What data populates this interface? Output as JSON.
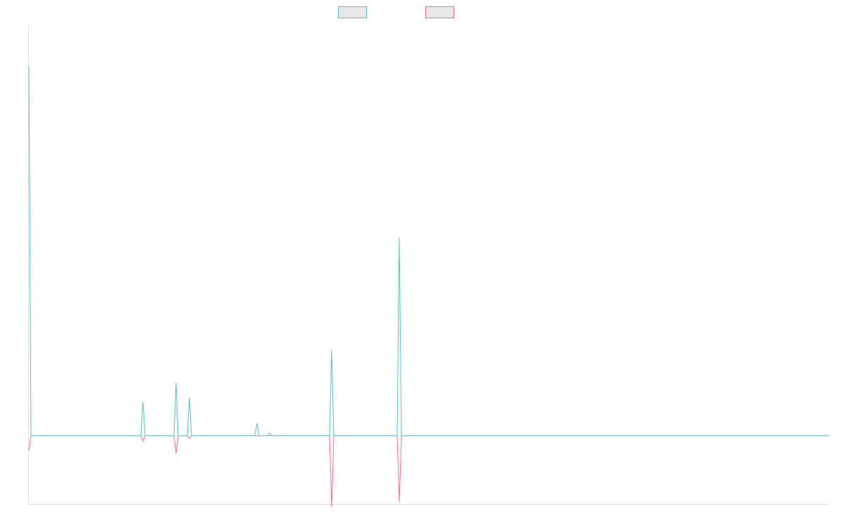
{
  "chart_data": {
    "type": "line",
    "title": "",
    "xlabel": "",
    "ylabel": "",
    "grid": false,
    "legend_position": "top-center",
    "x_count": 60,
    "ylim": [
      -100,
      600
    ],
    "series": [
      {
        "color": "#4bc0c0",
        "fill": "#e8e8e8",
        "values": [
          540,
          0,
          0,
          0,
          0,
          0,
          0,
          0,
          0,
          50,
          0,
          0,
          77,
          0,
          55,
          0,
          0,
          0,
          0,
          0,
          18,
          0,
          4,
          0,
          0,
          0,
          0,
          0,
          0,
          0,
          0,
          0,
          0,
          0,
          0,
          0,
          0,
          0,
          0,
          0,
          0,
          0,
          0,
          0,
          0,
          0,
          0,
          0,
          0,
          0,
          0,
          0,
          0,
          0,
          0,
          0,
          0,
          0,
          0,
          0
        ],
        "spikes": [
          {
            "index": 24,
            "value": 125
          },
          {
            "index": 29,
            "value": 290
          }
        ]
      },
      {
        "color": "#ff6384",
        "fill": "#e8e8e8",
        "values": [
          -22,
          0,
          0,
          0,
          0,
          0,
          0,
          0,
          0,
          -8,
          0,
          0,
          -26,
          0,
          -4,
          0,
          0,
          0,
          0,
          0,
          0,
          0,
          0,
          0,
          0,
          0,
          0,
          0,
          0,
          0,
          0,
          0,
          0,
          0,
          0,
          0,
          0,
          0,
          0,
          0,
          0,
          0,
          0,
          0,
          0,
          0,
          0,
          0,
          0,
          0,
          0,
          0,
          0,
          0,
          0,
          0,
          0,
          0,
          0,
          0
        ],
        "spikes": [
          {
            "index": 24,
            "value": -105
          },
          {
            "index": 29,
            "value": -97
          }
        ]
      }
    ]
  }
}
